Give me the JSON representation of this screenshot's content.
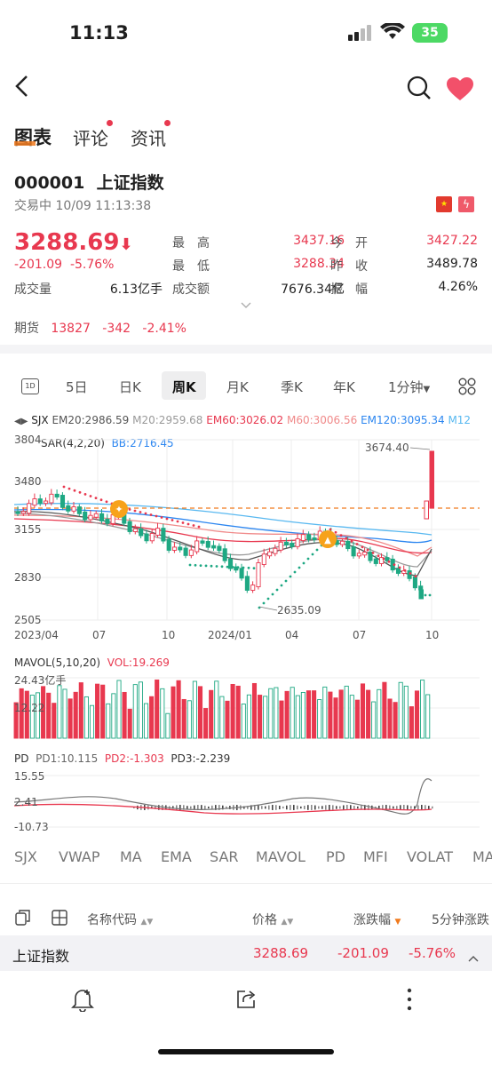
{
  "status_bar": {
    "time": "11:13",
    "battery": "35"
  },
  "tabs": [
    {
      "label": "图表",
      "active": true
    },
    {
      "label": "评论",
      "dot": true
    },
    {
      "label": "资讯",
      "dot": true
    }
  ],
  "stock": {
    "code": "000001",
    "name": "上证指数",
    "status": "交易中 10/09 11:13:38",
    "price": "3288.69",
    "change": "-201.09",
    "change_pct": "-5.76%",
    "volume_label": "成交量",
    "volume": "6.13亿手",
    "stats": [
      {
        "label": "最　高",
        "value": "3437.16",
        "color": "red"
      },
      {
        "label": "今　开",
        "value": "3427.22",
        "color": "red"
      },
      {
        "label": "最　低",
        "value": "3288.34",
        "color": "red"
      },
      {
        "label": "昨　收",
        "value": "3489.78",
        "color": "dark"
      },
      {
        "label": "成交额",
        "value": "7676.34亿",
        "color": "dark"
      },
      {
        "label": "振　幅",
        "value": "4.26%",
        "color": "dark"
      }
    ],
    "futures": {
      "label": "期货",
      "value": "13827",
      "change": "-342",
      "pct": "-2.41%"
    }
  },
  "periods": [
    "5日",
    "日K",
    "周K",
    "月K",
    "季K",
    "年K",
    "1分钟"
  ],
  "periods_active": "周K",
  "period_icon_1d": "1D",
  "ma_line": {
    "sjx": "SJX",
    "em20": "EM20:2986.59",
    "m20": "M20:2959.68",
    "em60": "EM60:3026.02",
    "m60": "M60:3006.56",
    "em120": "EM120:3095.34",
    "m12": "M12"
  },
  "sar_line": {
    "sar": "SAR(4,2,20)",
    "bb": "BB:2716.45"
  },
  "chart_data": [
    {
      "type": "candlestick",
      "title": "周K",
      "y_ticks": [
        "3804",
        "3480",
        "3155",
        "2830",
        "2505"
      ],
      "x_ticks": [
        "2023/04",
        "07",
        "10",
        "2024/01",
        "04",
        "07",
        "10"
      ],
      "ylim": [
        2505,
        3804
      ],
      "annotations": [
        "3674.40",
        "2635.09"
      ],
      "last_price_line": 3288.69
    },
    {
      "type": "bar",
      "title": "MAVOL(5,10,20)",
      "series_label": "VOL:19.269",
      "y_ticks": [
        "24.43亿手",
        "12.22"
      ]
    },
    {
      "type": "line",
      "title": "PD",
      "legend": [
        "PD1:10.115",
        "PD2:-1.303",
        "PD3:-2.239"
      ],
      "y_ticks": [
        "15.55",
        "2.41",
        "-10.73"
      ]
    }
  ],
  "indicators": [
    {
      "label": "SJX",
      "active": true
    },
    {
      "label": "VWAP"
    },
    {
      "label": "MA"
    },
    {
      "label": "EMA"
    },
    {
      "label": "SAR",
      "active": true
    },
    {
      "label": "MAVOL",
      "active": true
    },
    {
      "label": "PD",
      "active": true
    },
    {
      "label": "MFI"
    },
    {
      "label": "VOLAT"
    },
    {
      "label": "MA"
    }
  ],
  "list_header": {
    "name": "名称代码",
    "price": "价格",
    "change": "涨跌幅",
    "five_min": "5分钟涨跌"
  },
  "list_row": {
    "name": "上证指数",
    "price": "3288.69",
    "change": "-201.09",
    "pct": "-5.76%"
  },
  "colors": {
    "up": "#e8384f",
    "down": "#1ea883",
    "accent": "#f07a1e"
  }
}
